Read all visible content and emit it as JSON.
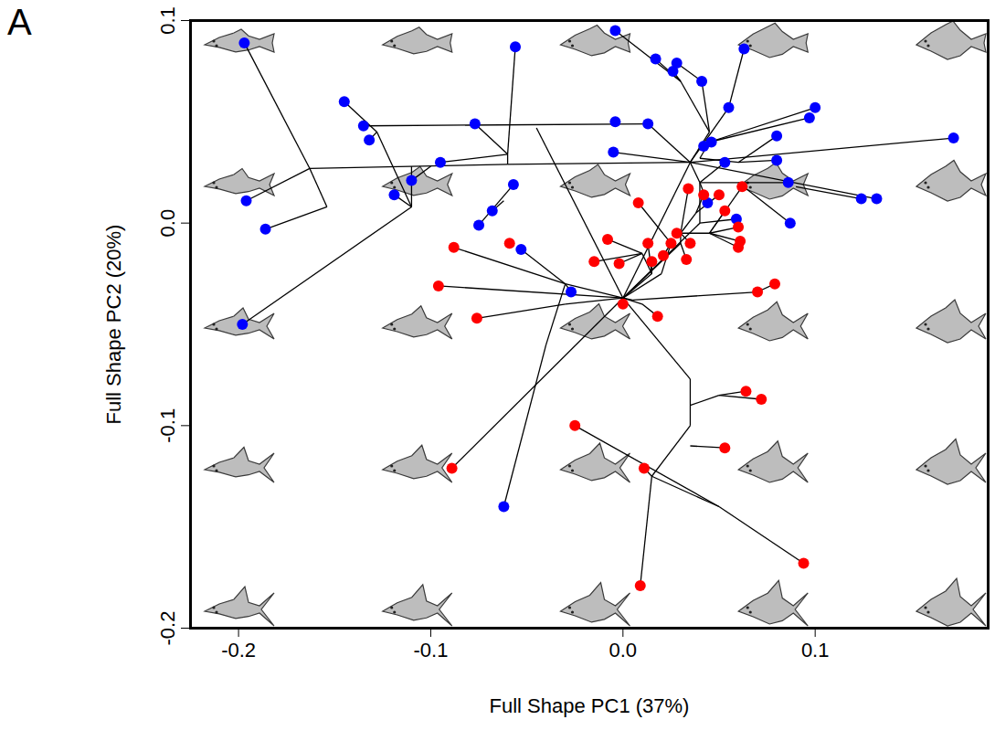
{
  "chart_data": {
    "type": "scatter",
    "title": "A",
    "x_label": "Full Shape PC1 (37%)",
    "y_label": "Full Shape PC2 (20%)",
    "xlim": [
      -0.225,
      0.19
    ],
    "ylim": [
      -0.2,
      0.1
    ],
    "xticks": [
      -0.2,
      -0.1,
      {
        "value": 0,
        "label": "0.0"
      },
      0.1
    ],
    "yticks": [
      -0.2,
      -0.1,
      {
        "value": 0,
        "label": "0.0"
      },
      0.1
    ],
    "grid": false,
    "series": [
      {
        "color": "#0000ff",
        "marker": "circle",
        "x": [
          -0.197,
          -0.196,
          -0.186,
          -0.198,
          -0.145,
          -0.135,
          -0.132,
          -0.119,
          -0.11,
          -0.095,
          -0.077,
          -0.056,
          -0.057,
          -0.068,
          -0.075,
          -0.053,
          -0.027,
          -0.062,
          -0.004,
          -0.004,
          0.013,
          -0.005,
          0.017,
          0.026,
          0.028,
          0.041,
          0.055,
          0.063,
          0.042,
          0.046,
          0.044,
          0.053,
          0.059,
          0.08,
          0.08,
          0.086,
          0.087,
          0.097,
          0.1,
          0.124,
          0.132,
          0.172
        ],
        "y": [
          0.089,
          0.011,
          -0.003,
          -0.05,
          0.06,
          0.048,
          0.041,
          0.014,
          0.021,
          0.03,
          0.049,
          0.087,
          0.019,
          0.006,
          -0.001,
          -0.013,
          -0.034,
          -0.14,
          0.095,
          0.05,
          0.049,
          0.035,
          0.081,
          0.075,
          0.079,
          0.07,
          0.057,
          0.086,
          0.038,
          0.04,
          0.01,
          0.03,
          0.002,
          0.043,
          0.031,
          0.02,
          0.0,
          0.052,
          0.057,
          0.012,
          0.012,
          0.042
        ]
      },
      {
        "color": "#ff0000",
        "marker": "circle",
        "x": [
          -0.096,
          -0.088,
          -0.059,
          -0.076,
          -0.089,
          -0.025,
          -0.015,
          -0.008,
          -0.002,
          0.0,
          0.008,
          0.013,
          0.015,
          0.018,
          0.009,
          0.011,
          0.025,
          0.028,
          0.034,
          0.042,
          0.05,
          0.053,
          0.06,
          0.062,
          0.061,
          0.06,
          0.021,
          0.035,
          0.033,
          0.07,
          0.079,
          0.064,
          0.072,
          0.053,
          0.094
        ],
        "y": [
          -0.031,
          -0.012,
          -0.01,
          -0.047,
          -0.121,
          -0.1,
          -0.019,
          -0.008,
          -0.02,
          -0.04,
          0.01,
          -0.01,
          -0.019,
          -0.046,
          -0.179,
          -0.121,
          -0.01,
          -0.005,
          0.017,
          0.014,
          0.014,
          0.006,
          -0.002,
          0.018,
          -0.009,
          -0.012,
          -0.016,
          -0.01,
          -0.018,
          -0.034,
          -0.03,
          -0.083,
          -0.087,
          -0.111,
          -0.168
        ]
      }
    ],
    "edges": [
      [
        -0.197,
        0.089,
        -0.163,
        0.027
      ],
      [
        -0.196,
        0.011,
        -0.163,
        0.027
      ],
      [
        -0.163,
        0.027,
        -0.154,
        0.008
      ],
      [
        -0.186,
        -0.003,
        -0.154,
        0.008
      ],
      [
        -0.163,
        0.027,
        -0.06,
        0.029
      ],
      [
        -0.145,
        0.06,
        -0.128,
        0.045
      ],
      [
        -0.132,
        0.041,
        -0.128,
        0.045
      ],
      [
        -0.128,
        0.045,
        -0.11,
        0.008
      ],
      [
        -0.119,
        0.014,
        -0.11,
        0.008
      ],
      [
        -0.198,
        -0.05,
        -0.11,
        0.008
      ],
      [
        -0.11,
        0.008,
        -0.11,
        0.028
      ],
      [
        -0.11,
        0.021,
        -0.1,
        0.028
      ],
      [
        -0.135,
        0.048,
        0.013,
        0.049
      ],
      [
        -0.056,
        0.087,
        -0.06,
        0.034
      ],
      [
        -0.095,
        0.03,
        -0.06,
        0.034
      ],
      [
        -0.077,
        0.049,
        -0.06,
        0.034
      ],
      [
        -0.06,
        0.034,
        -0.06,
        0.029
      ],
      [
        -0.06,
        0.029,
        0.035,
        0.03
      ],
      [
        -0.057,
        0.019,
        -0.075,
        -0.001
      ],
      [
        -0.068,
        0.006,
        -0.062,
        0.011
      ],
      [
        -0.045,
        0.047,
        0.0,
        -0.037
      ],
      [
        -0.053,
        -0.013,
        -0.03,
        -0.03
      ],
      [
        -0.027,
        -0.034,
        -0.03,
        -0.03
      ],
      [
        -0.03,
        -0.03,
        0.0,
        -0.037
      ],
      [
        -0.062,
        -0.14,
        -0.04,
        -0.06
      ],
      [
        -0.04,
        -0.06,
        -0.03,
        -0.03
      ],
      [
        -0.089,
        -0.121,
        0.0,
        -0.037
      ],
      [
        0.0,
        -0.037,
        0.035,
        0.03
      ],
      [
        0.035,
        0.03,
        0.172,
        0.042
      ],
      [
        0.035,
        0.03,
        0.132,
        0.012
      ],
      [
        0.124,
        0.012,
        0.09,
        0.018
      ],
      [
        0.035,
        0.03,
        0.055,
        0.057
      ],
      [
        0.055,
        0.057,
        0.063,
        0.086
      ],
      [
        -0.004,
        0.095,
        0.03,
        0.07
      ],
      [
        0.017,
        0.081,
        0.03,
        0.07
      ],
      [
        0.026,
        0.075,
        0.03,
        0.07
      ],
      [
        0.03,
        0.07,
        0.045,
        0.045
      ],
      [
        0.028,
        0.079,
        0.041,
        0.07
      ],
      [
        0.041,
        0.07,
        0.045,
        0.045
      ],
      [
        0.045,
        0.045,
        0.035,
        0.03
      ],
      [
        0.013,
        0.049,
        0.035,
        0.03
      ],
      [
        -0.005,
        0.035,
        0.035,
        0.03
      ],
      [
        0.1,
        0.057,
        0.045,
        0.04
      ],
      [
        0.097,
        0.052,
        0.045,
        0.04
      ],
      [
        0.042,
        0.038,
        0.045,
        0.04
      ],
      [
        0.045,
        0.04,
        0.04,
        0.032
      ],
      [
        0.08,
        0.043,
        0.06,
        0.03
      ],
      [
        0.08,
        0.031,
        0.06,
        0.03
      ],
      [
        0.06,
        0.03,
        0.04,
        0.032
      ],
      [
        0.087,
        0.0,
        0.06,
        0.02
      ],
      [
        0.086,
        0.02,
        0.06,
        0.02
      ],
      [
        0.06,
        0.02,
        0.04,
        0.02
      ],
      [
        0.044,
        0.01,
        0.04,
        0.02
      ],
      [
        0.053,
        0.03,
        0.04,
        0.02
      ],
      [
        0.059,
        0.002,
        0.04,
        0.0
      ],
      [
        0.04,
        0.02,
        0.035,
        0.03
      ],
      [
        0.04,
        0.0,
        0.04,
        0.02
      ],
      [
        0.0,
        -0.037,
        0.04,
        0.0
      ],
      [
        -0.096,
        -0.031,
        0.0,
        -0.037
      ],
      [
        -0.088,
        -0.012,
        -0.03,
        -0.03
      ],
      [
        -0.076,
        -0.047,
        -0.03,
        -0.04
      ],
      [
        -0.03,
        -0.04,
        0.0,
        -0.037
      ],
      [
        0.07,
        -0.034,
        0.005,
        -0.038
      ],
      [
        0.079,
        -0.03,
        0.07,
        -0.034
      ],
      [
        0.005,
        -0.038,
        0.0,
        -0.037
      ],
      [
        -0.015,
        -0.019,
        0.01,
        -0.015
      ],
      [
        -0.008,
        -0.008,
        0.01,
        -0.015
      ],
      [
        -0.002,
        -0.02,
        0.01,
        -0.015
      ],
      [
        0.01,
        -0.015,
        0.015,
        -0.025
      ],
      [
        0.013,
        -0.01,
        0.015,
        -0.025
      ],
      [
        0.015,
        -0.019,
        0.015,
        -0.025
      ],
      [
        0.015,
        -0.025,
        0.0,
        -0.037
      ],
      [
        0.008,
        0.01,
        0.025,
        -0.01
      ],
      [
        0.021,
        -0.016,
        0.025,
        -0.01
      ],
      [
        0.025,
        -0.01,
        0.02,
        -0.025
      ],
      [
        0.02,
        -0.025,
        0.0,
        -0.037
      ],
      [
        0.028,
        -0.005,
        0.03,
        -0.005
      ],
      [
        0.034,
        0.017,
        0.03,
        -0.005
      ],
      [
        0.042,
        0.014,
        0.038,
        0.005
      ],
      [
        0.05,
        0.014,
        0.038,
        0.005
      ],
      [
        0.038,
        0.005,
        0.03,
        -0.005
      ],
      [
        0.053,
        0.006,
        0.045,
        -0.005
      ],
      [
        0.06,
        -0.002,
        0.045,
        -0.005
      ],
      [
        0.062,
        0.018,
        0.045,
        -0.005
      ],
      [
        0.061,
        -0.009,
        0.045,
        -0.005
      ],
      [
        0.06,
        -0.012,
        0.045,
        -0.005
      ],
      [
        0.045,
        -0.005,
        0.03,
        -0.005
      ],
      [
        0.035,
        -0.01,
        0.03,
        -0.005
      ],
      [
        0.033,
        -0.018,
        0.03,
        -0.01
      ],
      [
        0.03,
        -0.005,
        0.03,
        -0.01
      ],
      [
        0.03,
        -0.01,
        0.0,
        -0.037
      ],
      [
        0.0,
        -0.04,
        0.0,
        -0.037
      ],
      [
        0.018,
        -0.046,
        0.01,
        -0.04
      ],
      [
        0.01,
        -0.04,
        0.0,
        -0.037
      ],
      [
        0.0,
        -0.037,
        0.035,
        -0.077
      ],
      [
        0.035,
        -0.077,
        0.035,
        -0.1
      ],
      [
        0.064,
        -0.083,
        0.05,
        -0.085
      ],
      [
        0.072,
        -0.087,
        0.05,
        -0.085
      ],
      [
        0.05,
        -0.085,
        0.035,
        -0.09
      ],
      [
        0.035,
        -0.1,
        0.015,
        -0.125
      ],
      [
        0.053,
        -0.111,
        0.035,
        -0.11
      ],
      [
        0.015,
        -0.125,
        0.011,
        -0.121
      ],
      [
        0.015,
        -0.125,
        0.05,
        -0.14
      ],
      [
        0.05,
        -0.14,
        0.094,
        -0.168
      ],
      [
        -0.025,
        -0.1,
        0.05,
        -0.14
      ],
      [
        0.015,
        -0.125,
        0.009,
        -0.179
      ]
    ]
  }
}
